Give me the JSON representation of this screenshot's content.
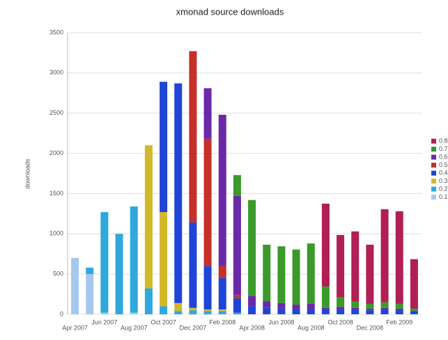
{
  "chart_data": {
    "type": "stacked_bar",
    "title": "xmonad source downloads",
    "y_label": "downloads",
    "categories": [
      "Apr 2007",
      null,
      "Jun 2007",
      null,
      "Aug 2007",
      null,
      "Oct 2007",
      null,
      "Dec 2007",
      null,
      "Feb 2008",
      null,
      "Apr 2008",
      null,
      "Jun 2008",
      null,
      "Aug 2008",
      null,
      "Oct 2008",
      null,
      "Dec 2008",
      null,
      "Feb 2009",
      null
    ],
    "series": [
      {
        "name": "0.1",
        "color": "#a6c8ee",
        "values": [
          700,
          500,
          20,
          0,
          20,
          0,
          0,
          0,
          0,
          0,
          0,
          0,
          0,
          0,
          0,
          0,
          0,
          0,
          0,
          0,
          0,
          0,
          0,
          0
        ]
      },
      {
        "name": "0.2",
        "color": "#2fa8dc",
        "values": [
          0,
          80,
          1250,
          1000,
          1320,
          320,
          100,
          40,
          50,
          40,
          40,
          20,
          0,
          0,
          0,
          0,
          0,
          0,
          0,
          0,
          0,
          0,
          0,
          0
        ]
      },
      {
        "name": "0.3",
        "color": "#d4b82a",
        "values": [
          0,
          0,
          0,
          0,
          0,
          1780,
          1170,
          100,
          30,
          20,
          20,
          0,
          0,
          0,
          0,
          0,
          0,
          0,
          0,
          0,
          0,
          0,
          0,
          0
        ]
      },
      {
        "name": "0.4",
        "color": "#1f45d6",
        "values": [
          0,
          0,
          0,
          0,
          0,
          0,
          1620,
          2730,
          1060,
          540,
          390,
          180,
          100,
          80,
          70,
          60,
          60,
          60,
          60,
          60,
          50,
          60,
          50,
          40
        ]
      },
      {
        "name": "0.5",
        "color": "#c4302a",
        "values": [
          0,
          0,
          0,
          0,
          0,
          0,
          0,
          0,
          2130,
          1580,
          150,
          40,
          0,
          0,
          0,
          0,
          0,
          0,
          0,
          0,
          0,
          0,
          0,
          0
        ]
      },
      {
        "name": "0.6",
        "color": "#6a2aa8",
        "values": [
          0,
          0,
          0,
          0,
          0,
          0,
          0,
          0,
          0,
          630,
          1880,
          1230,
          130,
          80,
          70,
          60,
          70,
          20,
          30,
          20,
          20,
          20,
          20,
          0
        ]
      },
      {
        "name": "0.7",
        "color": "#3a9a2a",
        "values": [
          0,
          0,
          0,
          0,
          0,
          0,
          0,
          0,
          0,
          0,
          0,
          260,
          1190,
          705,
          705,
          685,
          750,
          265,
          120,
          80,
          60,
          70,
          60,
          30
        ]
      },
      {
        "name": "0.8",
        "color": "#b01f55",
        "values": [
          0,
          0,
          0,
          0,
          0,
          0,
          0,
          0,
          0,
          0,
          0,
          0,
          0,
          0,
          0,
          0,
          0,
          1030,
          775,
          870,
          735,
          1155,
          1150,
          615
        ]
      }
    ],
    "ylim": [
      0,
      3500
    ],
    "yticks": [
      0,
      500,
      1000,
      1500,
      2000,
      2500,
      3000,
      3500
    ],
    "grid": true,
    "legend": "right"
  }
}
